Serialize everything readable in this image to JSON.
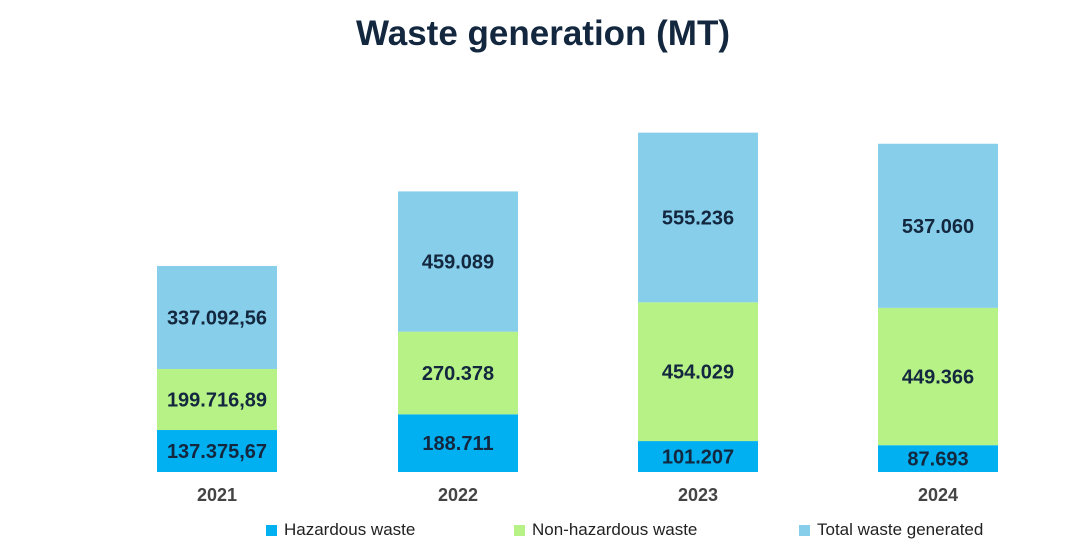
{
  "chart_data": {
    "type": "bar",
    "stacked": true,
    "title": "Waste generation (MT)",
    "xlabel": "",
    "ylabel": "",
    "categories": [
      "2021",
      "2022",
      "2023",
      "2024"
    ],
    "series": [
      {
        "name": "Hazardous waste",
        "color": "#00b0f0",
        "values": [
          137375.67,
          188711,
          101207,
          87693
        ],
        "labels": [
          "137.375,67",
          "188.711",
          "101.207",
          "87.693"
        ]
      },
      {
        "name": "Non-hazardous waste",
        "color": "#b6f285",
        "values": [
          199716.89,
          270378,
          454029,
          449366
        ],
        "labels": [
          "199.716,89",
          "270.378",
          "454.029",
          "449.366"
        ]
      },
      {
        "name": "Total waste generated",
        "color": "#87ceea",
        "values": [
          337092.56,
          459089,
          555236,
          537060
        ],
        "labels": [
          "337.092,56",
          "459.089",
          "555.236",
          "537.060"
        ]
      }
    ],
    "grid": false,
    "legend_position": "bottom"
  }
}
